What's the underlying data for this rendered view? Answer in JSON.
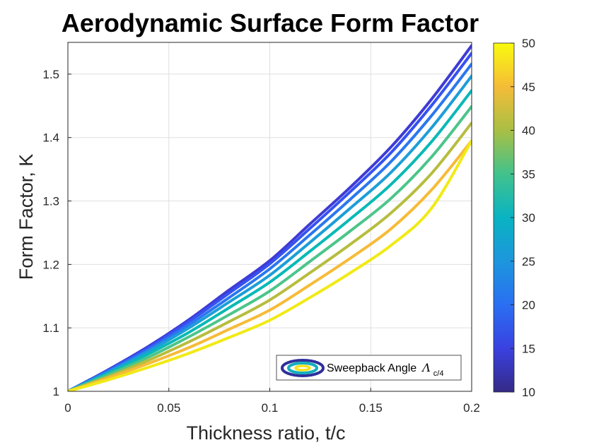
{
  "chart_data": {
    "type": "line",
    "title": "Aerodynamic Surface Form Factor",
    "xlabel": "Thickness ratio, t/c",
    "ylabel": "Form Factor, K",
    "xlim": [
      0,
      0.2
    ],
    "ylim": [
      1,
      1.55
    ],
    "x_ticks": [
      "0",
      "0.05",
      "0.1",
      "0.15",
      "0.2"
    ],
    "y_ticks": [
      "1",
      "1.1",
      "1.2",
      "1.3",
      "1.4",
      "1.5"
    ],
    "grid": true,
    "legend": {
      "label": "Sweepback Angle",
      "symbol": "Λ",
      "subscript": "c/4",
      "location": "bottom-right"
    },
    "colorbar": {
      "min": 10,
      "max": 50,
      "ticks": [
        "10",
        "15",
        "20",
        "25",
        "30",
        "35",
        "40",
        "45",
        "50"
      ],
      "colormap": "parula"
    },
    "x": [
      0,
      0.02,
      0.04,
      0.06,
      0.08,
      0.1,
      0.12,
      0.14,
      0.16,
      0.18,
      0.2
    ],
    "series": [
      {
        "sweep": 10,
        "color": "#3e3bd4",
        "values": [
          1.0,
          1.034,
          1.071,
          1.113,
          1.16,
          1.206,
          1.264,
          1.322,
          1.385,
          1.46,
          1.545
        ]
      },
      {
        "sweep": 15,
        "color": "#3652f0",
        "values": [
          1.0,
          1.033,
          1.069,
          1.11,
          1.155,
          1.201,
          1.257,
          1.315,
          1.376,
          1.45,
          1.533
        ]
      },
      {
        "sweep": 20,
        "color": "#2b77ef",
        "values": [
          1.0,
          1.032,
          1.066,
          1.105,
          1.148,
          1.193,
          1.247,
          1.303,
          1.362,
          1.434,
          1.516
        ]
      },
      {
        "sweep": 25,
        "color": "#1c9ed8",
        "values": [
          1.0,
          1.03,
          1.063,
          1.1,
          1.141,
          1.183,
          1.235,
          1.289,
          1.345,
          1.415,
          1.497
        ]
      },
      {
        "sweep": 30,
        "color": "#09b9b6",
        "values": [
          1.0,
          1.028,
          1.059,
          1.093,
          1.132,
          1.172,
          1.221,
          1.272,
          1.326,
          1.393,
          1.474
        ]
      },
      {
        "sweep": 35,
        "color": "#4cc58a",
        "values": [
          1.0,
          1.026,
          1.054,
          1.086,
          1.121,
          1.158,
          1.205,
          1.253,
          1.304,
          1.369,
          1.449
        ]
      },
      {
        "sweep": 40,
        "color": "#b7bd3e",
        "values": [
          1.0,
          1.023,
          1.049,
          1.078,
          1.11,
          1.144,
          1.187,
          1.232,
          1.281,
          1.343,
          1.423
        ]
      },
      {
        "sweep": 45,
        "color": "#f6bb38",
        "values": [
          1.0,
          1.021,
          1.044,
          1.069,
          1.098,
          1.128,
          1.168,
          1.21,
          1.256,
          1.317,
          1.395
        ]
      },
      {
        "sweep": 50,
        "color": "#f1ea15",
        "values": [
          1.0,
          1.018,
          1.038,
          1.06,
          1.085,
          1.112,
          1.148,
          1.187,
          1.23,
          1.288,
          1.395
        ]
      }
    ]
  }
}
